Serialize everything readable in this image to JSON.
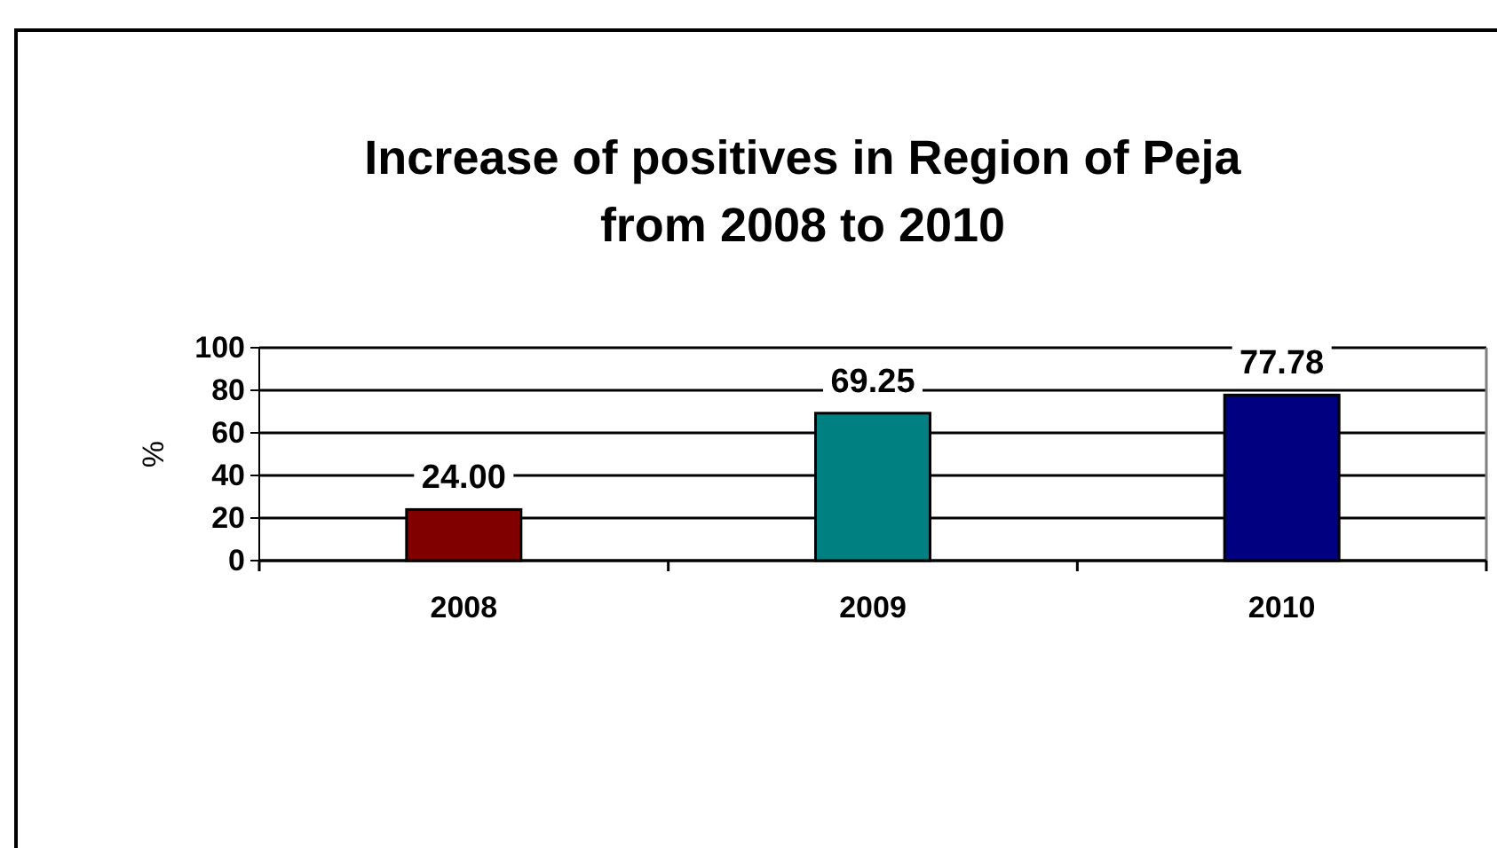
{
  "chart_data": {
    "type": "bar",
    "title": "Increase of positives in Region of Peja\nfrom 2008 to 2010",
    "ylabel": "%",
    "categories": [
      "2008",
      "2009",
      "2010"
    ],
    "values": [
      24.0,
      69.25,
      77.78
    ],
    "colors": [
      "#800000",
      "#008080",
      "#000080"
    ],
    "value_labels": [
      "24.00",
      "69.25",
      "77.78"
    ],
    "ylim": [
      0,
      100
    ],
    "yticks": [
      0,
      20,
      40,
      60,
      80,
      100
    ],
    "grid": "y"
  }
}
